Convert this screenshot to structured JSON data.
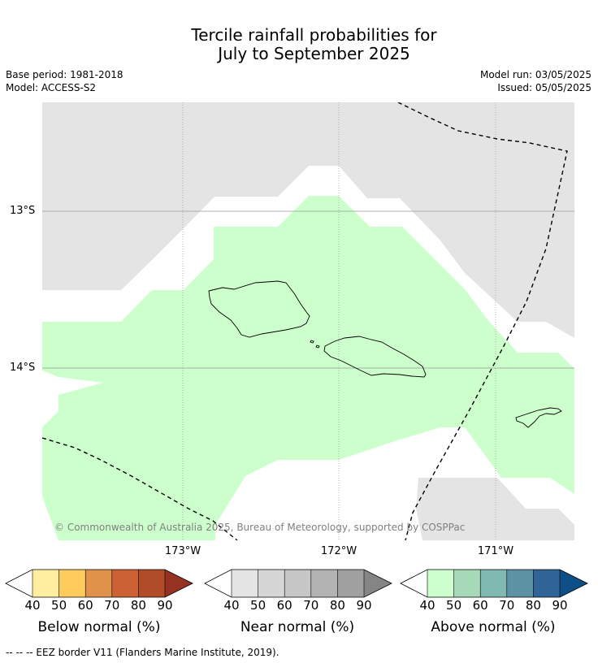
{
  "title": {
    "line1": "Tercile rainfall probabilities for",
    "line2": "July to September 2025"
  },
  "meta": {
    "base_period": "Base period: 1981-2018",
    "model": "Model: ACCESS-S2",
    "model_run": "Model run: 03/05/2025",
    "issued": "Issued: 05/05/2025"
  },
  "map": {
    "latitude_labels": [
      "13°S",
      "14°S"
    ],
    "longitude_labels": [
      "173°W",
      "172°W",
      "171°W"
    ],
    "copyright": "© Commonwealth of Australia 2025, Bureau of Meteorology, supported by COSPPac",
    "colors": {
      "above_40_50": "#ccffcc",
      "near_40_50": "#e4e4e4",
      "land_outline": "#000000",
      "eez_border": "#000000",
      "gridline": "#999999"
    }
  },
  "colorbars": [
    {
      "title": "Below normal (%)",
      "ticks": [
        "40",
        "50",
        "60",
        "70",
        "80",
        "90"
      ],
      "colors": [
        "#ffffff",
        "#ffeda0",
        "#fecc5c",
        "#e0924a",
        "#cc6133",
        "#b04c28",
        "#963222"
      ]
    },
    {
      "title": "Near normal (%)",
      "ticks": [
        "40",
        "50",
        "60",
        "70",
        "80",
        "90"
      ],
      "colors": [
        "#ffffff",
        "#e4e4e4",
        "#d6d6d6",
        "#c6c6c6",
        "#b3b3b3",
        "#a0a0a0",
        "#858585"
      ]
    },
    {
      "title": "Above normal (%)",
      "ticks": [
        "40",
        "50",
        "60",
        "70",
        "80",
        "90"
      ],
      "colors": [
        "#ffffff",
        "#ccffcc",
        "#a6d9b8",
        "#80b8b2",
        "#5d92a4",
        "#306396",
        "#0f4f87"
      ]
    }
  ],
  "footer": {
    "legend_text": "-- -- -- EEZ border V11 (Flanders Marine Institute, 2019)."
  }
}
